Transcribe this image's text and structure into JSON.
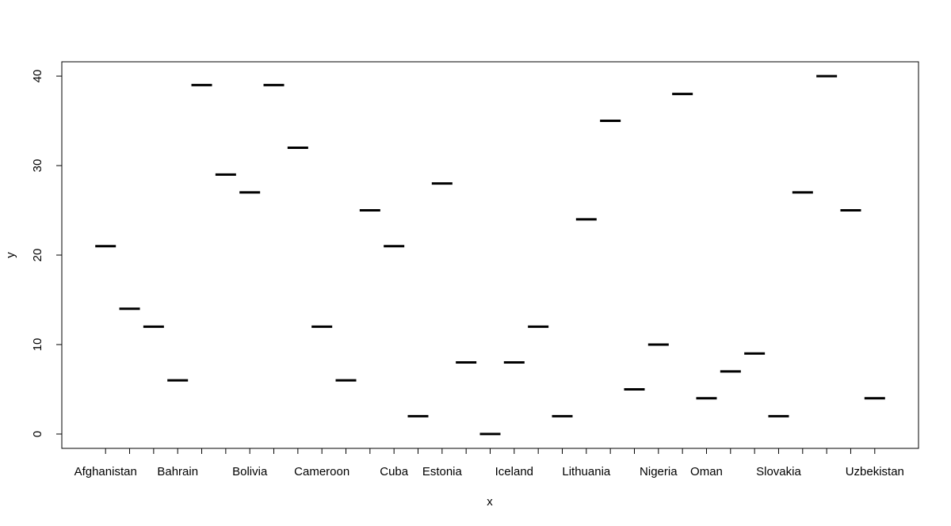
{
  "chart_data": {
    "type": "boxplot",
    "xlabel": "x",
    "ylabel": "y",
    "categories": [
      "Afghanistan",
      null,
      null,
      "Bahrain",
      null,
      null,
      "Bolivia",
      null,
      null,
      "Cameroon",
      null,
      null,
      "Cuba",
      null,
      "Estonia",
      null,
      null,
      "Iceland",
      null,
      null,
      "Lithuania",
      null,
      null,
      "Nigeria",
      null,
      "Oman",
      null,
      null,
      "Slovakia",
      null,
      null,
      null,
      "Uzbekistan"
    ],
    "values": [
      21,
      14,
      12,
      6,
      39,
      29,
      27,
      39,
      32,
      12,
      6,
      25,
      21,
      2,
      28,
      8,
      0,
      8,
      12,
      2,
      24,
      35,
      5,
      10,
      38,
      4,
      7,
      9,
      2,
      27,
      40,
      25,
      4
    ],
    "color": "#000000",
    "ylim": [
      -1.6,
      41.6
    ],
    "yticks": [
      0,
      10,
      20,
      30,
      40
    ]
  }
}
